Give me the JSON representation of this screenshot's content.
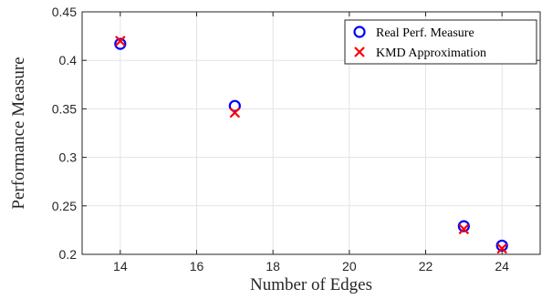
{
  "chart_data": {
    "type": "scatter",
    "title": "",
    "xlabel": "Number of Edges",
    "ylabel": "Performance Measure",
    "xlim": [
      13,
      25
    ],
    "ylim": [
      0.2,
      0.45
    ],
    "xticks": [
      14,
      16,
      18,
      20,
      22,
      24
    ],
    "xtick_labels": [
      "14",
      "16",
      "18",
      "20",
      "22",
      "24"
    ],
    "yticks": [
      0.2,
      0.25,
      0.3,
      0.35,
      0.4,
      0.45
    ],
    "ytick_labels": [
      "0.2",
      "0.25",
      "0.3",
      "0.35",
      "0.4",
      "0.45"
    ],
    "grid": true,
    "legend_position": "top-right",
    "series": [
      {
        "name": "Real Perf. Measure",
        "marker": "circle",
        "color": "#0000ff",
        "x": [
          14,
          17,
          23,
          24
        ],
        "y": [
          0.417,
          0.353,
          0.229,
          0.209
        ]
      },
      {
        "name": "KMD Approximation",
        "marker": "cross",
        "color": "#ff0000",
        "x": [
          14,
          17,
          23,
          24
        ],
        "y": [
          0.42,
          0.346,
          0.226,
          0.206
        ]
      }
    ]
  }
}
